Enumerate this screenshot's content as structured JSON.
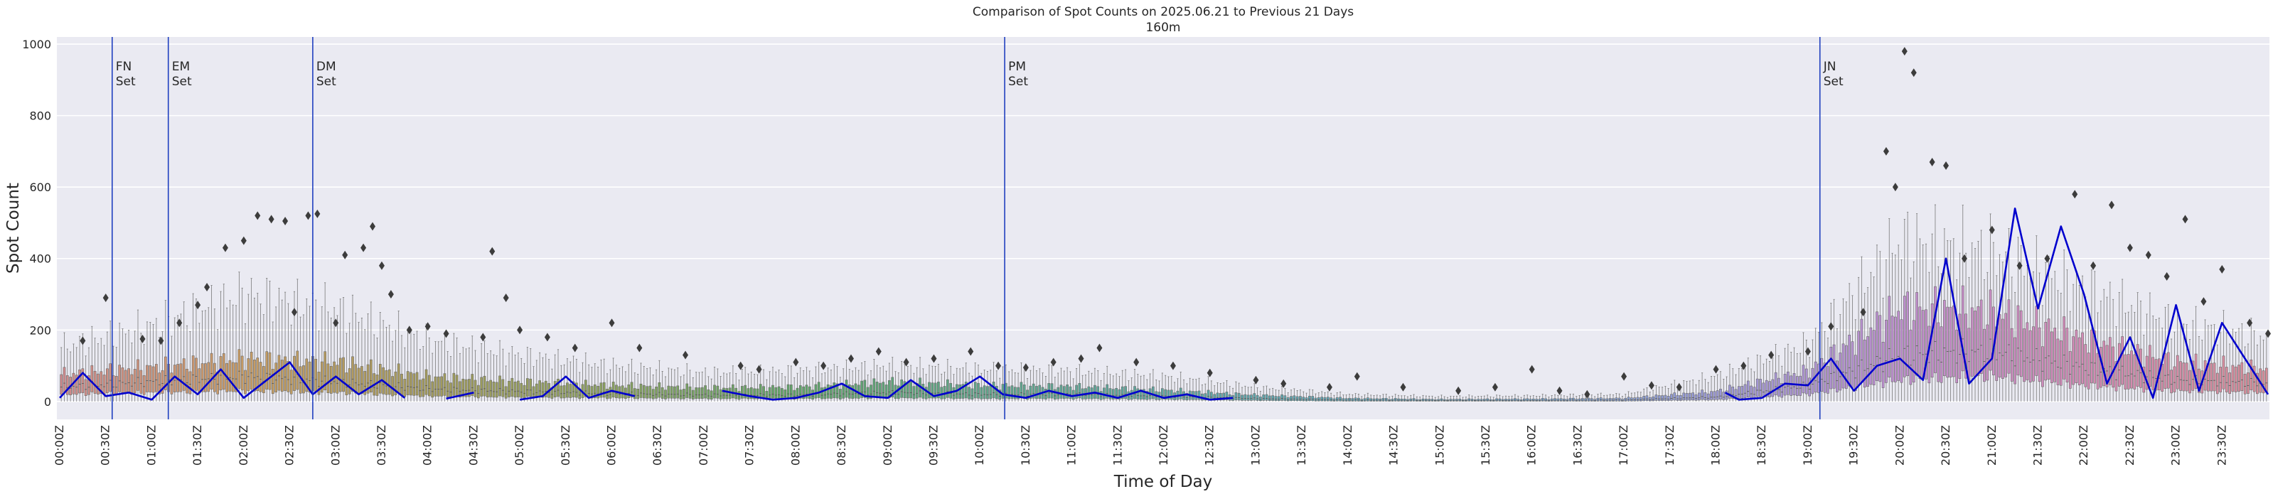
{
  "chart_data": {
    "type": "box",
    "title": "Comparison of Spot Counts on 2025.06.21 to Previous 21 Days",
    "subtitle": "160m",
    "xlabel": "Time of Day",
    "ylabel": "Spot Count",
    "ylim": [
      -50,
      1020
    ],
    "yticks": [
      0,
      200,
      400,
      600,
      800,
      1000
    ],
    "grid": true,
    "x_ticks": [
      "00:00Z",
      "00:30Z",
      "01:00Z",
      "01:30Z",
      "02:00Z",
      "02:30Z",
      "03:00Z",
      "03:30Z",
      "04:00Z",
      "04:30Z",
      "05:00Z",
      "05:30Z",
      "06:00Z",
      "06:30Z",
      "07:00Z",
      "07:30Z",
      "08:00Z",
      "08:30Z",
      "09:00Z",
      "09:30Z",
      "10:00Z",
      "10:30Z",
      "11:00Z",
      "11:30Z",
      "12:00Z",
      "12:30Z",
      "13:00Z",
      "13:30Z",
      "14:00Z",
      "14:30Z",
      "15:00Z",
      "15:30Z",
      "16:00Z",
      "16:30Z",
      "17:00Z",
      "17:30Z",
      "18:00Z",
      "18:30Z",
      "19:00Z",
      "19:30Z",
      "20:00Z",
      "20:30Z",
      "21:00Z",
      "21:30Z",
      "22:00Z",
      "22:30Z",
      "23:00Z",
      "23:30Z"
    ],
    "slots_per_half_hour": 15,
    "box_anchors": [
      {
        "hour": 0.0,
        "q1": 20,
        "med": 40,
        "q3": 75,
        "whisk": 150
      },
      {
        "hour": 1.0,
        "q1": 25,
        "med": 55,
        "q3": 95,
        "whisk": 210
      },
      {
        "hour": 2.0,
        "q1": 30,
        "med": 70,
        "q3": 120,
        "whisk": 300
      },
      {
        "hour": 3.0,
        "q1": 25,
        "med": 55,
        "q3": 110,
        "whisk": 260
      },
      {
        "hour": 4.0,
        "q1": 15,
        "med": 35,
        "q3": 70,
        "whisk": 170
      },
      {
        "hour": 5.0,
        "q1": 12,
        "med": 28,
        "q3": 55,
        "whisk": 130
      },
      {
        "hour": 6.0,
        "q1": 10,
        "med": 22,
        "q3": 45,
        "whisk": 100
      },
      {
        "hour": 7.0,
        "q1": 8,
        "med": 18,
        "q3": 38,
        "whisk": 80
      },
      {
        "hour": 8.0,
        "q1": 8,
        "med": 18,
        "q3": 40,
        "whisk": 85
      },
      {
        "hour": 9.0,
        "q1": 10,
        "med": 25,
        "q3": 55,
        "whisk": 100
      },
      {
        "hour": 10.0,
        "q1": 8,
        "med": 20,
        "q3": 45,
        "whisk": 90
      },
      {
        "hour": 11.0,
        "q1": 8,
        "med": 20,
        "q3": 42,
        "whisk": 85
      },
      {
        "hour": 12.0,
        "q1": 6,
        "med": 15,
        "q3": 32,
        "whisk": 70
      },
      {
        "hour": 13.0,
        "q1": 3,
        "med": 8,
        "q3": 18,
        "whisk": 40
      },
      {
        "hour": 14.0,
        "q1": 1,
        "med": 4,
        "q3": 9,
        "whisk": 20
      },
      {
        "hour": 15.0,
        "q1": 1,
        "med": 3,
        "q3": 6,
        "whisk": 14
      },
      {
        "hour": 16.0,
        "q1": 1,
        "med": 3,
        "q3": 7,
        "whisk": 16
      },
      {
        "hour": 17.0,
        "q1": 1,
        "med": 4,
        "q3": 9,
        "whisk": 20
      },
      {
        "hour": 18.0,
        "q1": 5,
        "med": 12,
        "q3": 28,
        "whisk": 70
      },
      {
        "hour": 19.0,
        "q1": 20,
        "med": 45,
        "q3": 85,
        "whisk": 160
      },
      {
        "hour": 20.0,
        "q1": 60,
        "med": 130,
        "q3": 260,
        "whisk": 450
      },
      {
        "hour": 21.0,
        "q1": 70,
        "med": 140,
        "q3": 250,
        "whisk": 420
      },
      {
        "hour": 22.0,
        "q1": 45,
        "med": 95,
        "q3": 175,
        "whisk": 320
      },
      {
        "hour": 23.0,
        "q1": 30,
        "med": 60,
        "q3": 110,
        "whisk": 220
      },
      {
        "hour": 24.0,
        "q1": 25,
        "med": 50,
        "q3": 90,
        "whisk": 180
      }
    ],
    "box_colors": [
      {
        "hour": 0.0,
        "color": "#d08a8e"
      },
      {
        "hour": 2.0,
        "color": "#c99c63"
      },
      {
        "hour": 4.0,
        "color": "#a39b5c"
      },
      {
        "hour": 6.0,
        "color": "#8aa15f"
      },
      {
        "hour": 8.0,
        "color": "#5fa468"
      },
      {
        "hour": 10.0,
        "color": "#5fa58a"
      },
      {
        "hour": 12.0,
        "color": "#5ea5a0"
      },
      {
        "hour": 14.0,
        "color": "#5ea3b5"
      },
      {
        "hour": 16.0,
        "color": "#6ea0cc"
      },
      {
        "hour": 18.0,
        "color": "#9b98d6"
      },
      {
        "hour": 20.0,
        "color": "#c08ed0"
      },
      {
        "hour": 22.0,
        "color": "#d38bb6"
      },
      {
        "hour": 24.0,
        "color": "#d88c98"
      }
    ],
    "series": [
      {
        "name": "2025.06.21",
        "color": "#0000cd",
        "points": [
          [
            0.0,
            10
          ],
          [
            0.25,
            80
          ],
          [
            0.5,
            15
          ],
          [
            0.75,
            25
          ],
          [
            1.0,
            5
          ],
          [
            1.25,
            70
          ],
          [
            1.5,
            20
          ],
          [
            1.75,
            90
          ],
          [
            2.0,
            10
          ],
          [
            2.25,
            60
          ],
          [
            2.5,
            110
          ],
          [
            2.75,
            20
          ],
          [
            3.0,
            70
          ],
          [
            3.25,
            20
          ],
          [
            3.5,
            60
          ],
          [
            3.75,
            10
          ],
          [
            4.0,
            null
          ],
          [
            4.2,
            8
          ],
          [
            4.5,
            25
          ],
          [
            4.75,
            null
          ],
          [
            5.0,
            5
          ],
          [
            5.25,
            15
          ],
          [
            5.5,
            70
          ],
          [
            5.75,
            10
          ],
          [
            6.0,
            30
          ],
          [
            6.25,
            15
          ],
          [
            6.5,
            null
          ],
          [
            7.0,
            null
          ],
          [
            7.2,
            30
          ],
          [
            7.5,
            15
          ],
          [
            7.75,
            5
          ],
          [
            8.0,
            10
          ],
          [
            8.25,
            25
          ],
          [
            8.5,
            50
          ],
          [
            8.75,
            15
          ],
          [
            9.0,
            10
          ],
          [
            9.25,
            60
          ],
          [
            9.5,
            15
          ],
          [
            9.75,
            30
          ],
          [
            10.0,
            70
          ],
          [
            10.25,
            20
          ],
          [
            10.5,
            10
          ],
          [
            10.75,
            30
          ],
          [
            11.0,
            15
          ],
          [
            11.25,
            25
          ],
          [
            11.5,
            10
          ],
          [
            11.75,
            30
          ],
          [
            12.0,
            10
          ],
          [
            12.25,
            20
          ],
          [
            12.5,
            5
          ],
          [
            12.75,
            10
          ],
          [
            13.0,
            null
          ],
          [
            18.0,
            null
          ],
          [
            18.1,
            25
          ],
          [
            18.25,
            5
          ],
          [
            18.5,
            10
          ],
          [
            18.75,
            50
          ],
          [
            19.0,
            45
          ],
          [
            19.25,
            120
          ],
          [
            19.5,
            30
          ],
          [
            19.75,
            100
          ],
          [
            20.0,
            120
          ],
          [
            20.25,
            60
          ],
          [
            20.5,
            400
          ],
          [
            20.75,
            50
          ],
          [
            21.0,
            120
          ],
          [
            21.25,
            540
          ],
          [
            21.5,
            260
          ],
          [
            21.75,
            490
          ],
          [
            22.0,
            300
          ],
          [
            22.25,
            50
          ],
          [
            22.5,
            180
          ],
          [
            22.75,
            10
          ],
          [
            23.0,
            270
          ],
          [
            23.25,
            30
          ],
          [
            23.5,
            220
          ],
          [
            23.75,
            120
          ],
          [
            24.0,
            20
          ]
        ]
      }
    ],
    "outlier_points": [
      [
        0.25,
        170
      ],
      [
        0.5,
        290
      ],
      [
        0.9,
        175
      ],
      [
        1.1,
        170
      ],
      [
        1.3,
        220
      ],
      [
        1.5,
        270
      ],
      [
        1.6,
        320
      ],
      [
        1.8,
        430
      ],
      [
        2.0,
        450
      ],
      [
        2.15,
        520
      ],
      [
        2.3,
        510
      ],
      [
        2.45,
        505
      ],
      [
        2.55,
        250
      ],
      [
        2.7,
        520
      ],
      [
        2.8,
        525
      ],
      [
        3.0,
        220
      ],
      [
        3.1,
        410
      ],
      [
        3.3,
        430
      ],
      [
        3.4,
        490
      ],
      [
        3.5,
        380
      ],
      [
        3.6,
        300
      ],
      [
        3.8,
        200
      ],
      [
        4.0,
        210
      ],
      [
        4.2,
        190
      ],
      [
        4.6,
        180
      ],
      [
        4.7,
        420
      ],
      [
        4.85,
        290
      ],
      [
        5.0,
        200
      ],
      [
        5.3,
        180
      ],
      [
        5.6,
        150
      ],
      [
        6.0,
        220
      ],
      [
        6.3,
        150
      ],
      [
        6.8,
        130
      ],
      [
        7.4,
        100
      ],
      [
        7.6,
        90
      ],
      [
        8.0,
        110
      ],
      [
        8.3,
        100
      ],
      [
        8.6,
        120
      ],
      [
        8.9,
        140
      ],
      [
        9.2,
        110
      ],
      [
        9.5,
        120
      ],
      [
        9.9,
        140
      ],
      [
        10.2,
        100
      ],
      [
        10.5,
        95
      ],
      [
        10.8,
        110
      ],
      [
        11.1,
        120
      ],
      [
        11.3,
        150
      ],
      [
        11.7,
        110
      ],
      [
        12.1,
        100
      ],
      [
        12.5,
        80
      ],
      [
        13.0,
        60
      ],
      [
        13.3,
        50
      ],
      [
        13.8,
        40
      ],
      [
        14.1,
        70
      ],
      [
        14.6,
        40
      ],
      [
        15.2,
        30
      ],
      [
        15.6,
        40
      ],
      [
        16.0,
        90
      ],
      [
        16.3,
        30
      ],
      [
        16.6,
        20
      ],
      [
        17.0,
        70
      ],
      [
        17.3,
        45
      ],
      [
        17.6,
        40
      ],
      [
        18.0,
        90
      ],
      [
        18.3,
        100
      ],
      [
        18.6,
        130
      ],
      [
        19.0,
        140
      ],
      [
        19.25,
        210
      ],
      [
        19.6,
        250
      ],
      [
        19.85,
        700
      ],
      [
        19.95,
        600
      ],
      [
        20.05,
        980
      ],
      [
        20.15,
        920
      ],
      [
        20.35,
        670
      ],
      [
        20.5,
        660
      ],
      [
        20.7,
        400
      ],
      [
        21.0,
        480
      ],
      [
        21.3,
        380
      ],
      [
        21.6,
        400
      ],
      [
        21.9,
        580
      ],
      [
        22.1,
        380
      ],
      [
        22.3,
        550
      ],
      [
        22.5,
        430
      ],
      [
        22.7,
        410
      ],
      [
        22.9,
        350
      ],
      [
        23.1,
        510
      ],
      [
        23.3,
        280
      ],
      [
        23.5,
        370
      ],
      [
        23.8,
        220
      ],
      [
        24.0,
        190
      ]
    ],
    "event_lines": [
      {
        "hour": 0.57,
        "label": "FN\nSet"
      },
      {
        "hour": 1.18,
        "label": "EM\nSet"
      },
      {
        "hour": 2.75,
        "label": "DM\nSet"
      },
      {
        "hour": 10.27,
        "label": "PM\nSet"
      },
      {
        "hour": 19.13,
        "label": "JN\nSet"
      }
    ],
    "colors": {
      "plot_background": "#eaeaf2",
      "grid": "#ffffff",
      "event_line": "#1f3fbf",
      "outlier": "#3c3c3c"
    }
  }
}
